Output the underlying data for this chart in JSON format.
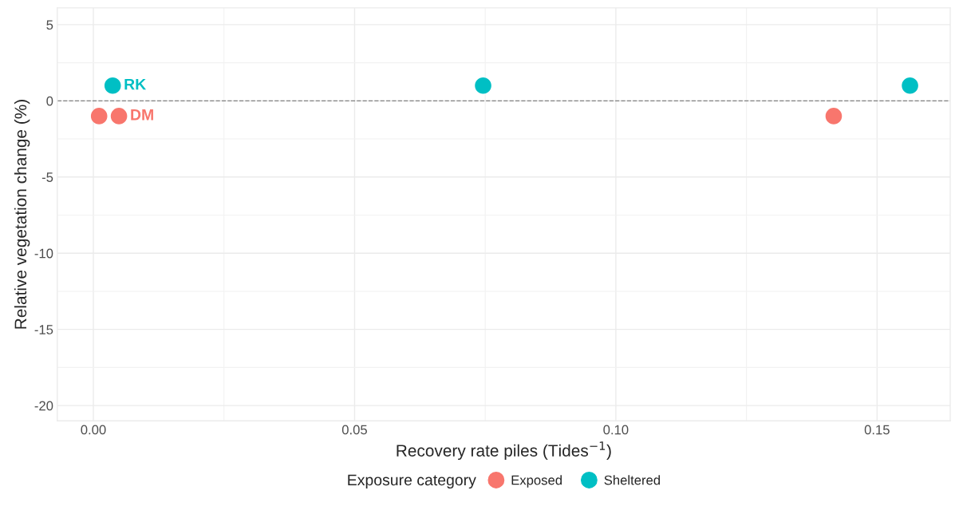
{
  "chart_data": {
    "type": "scatter",
    "xlabel": "Recovery rate piles (Tides$^{−1}$)",
    "ylabel": "Relative vegetation change (%)",
    "legend_title": "Exposure category",
    "series": [
      {
        "name": "Exposed",
        "color": "#f8766d",
        "x": [
          0.0011,
          0.0049,
          0.1417
        ],
        "values": [
          -1,
          -1,
          -1
        ]
      },
      {
        "name": "Sheltered",
        "color": "#00bfc4",
        "x": [
          0.0037,
          0.0746,
          0.1563
        ],
        "values": [
          1,
          1,
          1
        ]
      }
    ],
    "annotations": [
      {
        "text": "RK",
        "x": 0.0037,
        "y": 1
      },
      {
        "text": "DM",
        "x": 0.0049,
        "y": -1
      }
    ],
    "ref_lines": [
      {
        "axis": "y",
        "value": 0,
        "color": "#808080",
        "line_style": "dashed"
      }
    ],
    "xlim": [
      -0.0069,
      0.164
    ],
    "ylim": [
      -21,
      6.1
    ],
    "xticks": [
      {
        "value": 0,
        "label": "0.00"
      },
      {
        "value": 0.05,
        "label": "0.05"
      },
      {
        "value": 0.1,
        "label": "0.10"
      },
      {
        "value": 0.15,
        "label": "0.15"
      }
    ],
    "yticks": [
      -20,
      -15,
      -10,
      -5,
      0,
      5
    ],
    "grid": true,
    "legend": "bottom",
    "marker": "circle"
  }
}
